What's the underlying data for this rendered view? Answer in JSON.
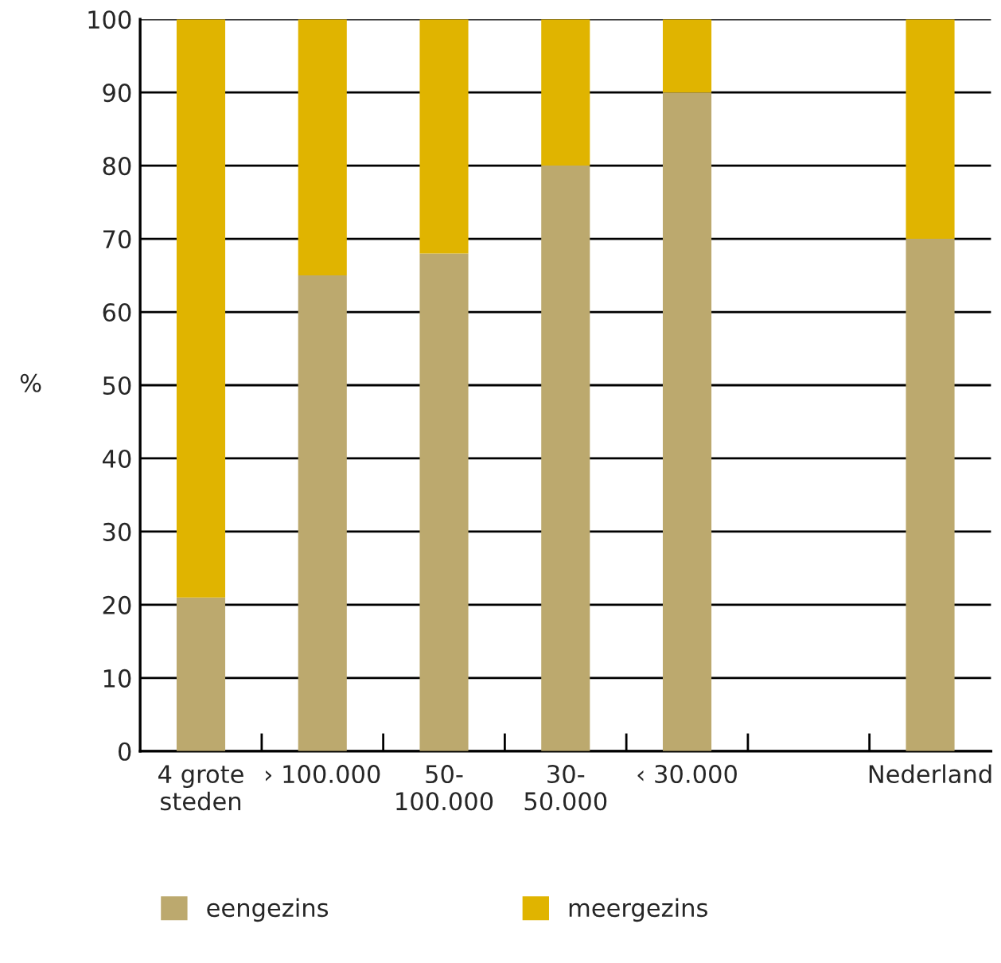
{
  "chart_data": {
    "type": "bar",
    "stacked": true,
    "ylabel": "%",
    "categories": [
      "4 grote\nsteden",
      "› 100.000",
      "50-\n100.000",
      "30-\n50.000",
      "‹ 30.000",
      null,
      "Nederland"
    ],
    "series": [
      {
        "name": "eengezins",
        "color": "#bca96e",
        "values": [
          21,
          65,
          68,
          80,
          90,
          null,
          70
        ]
      },
      {
        "name": "meergezins",
        "color": "#e0b400",
        "values": [
          79,
          35,
          32,
          20,
          10,
          null,
          30
        ]
      }
    ],
    "ylim": [
      0,
      100
    ],
    "yticks": [
      0,
      10,
      20,
      30,
      40,
      50,
      60,
      70,
      80,
      90,
      100
    ],
    "grid": "y",
    "legend": "bottom"
  }
}
